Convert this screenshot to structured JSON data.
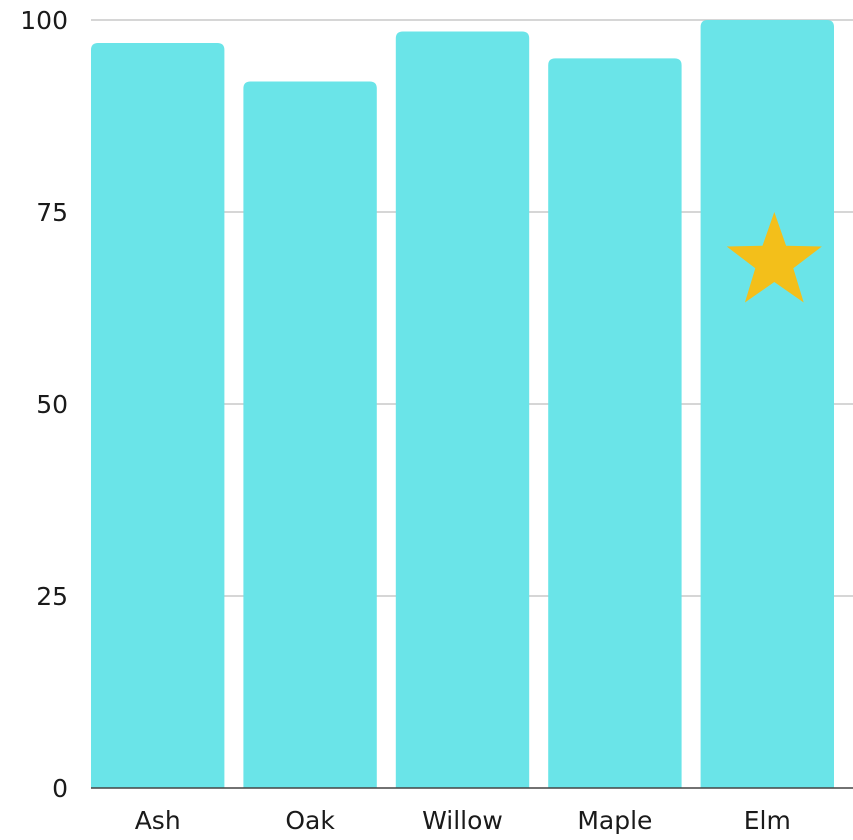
{
  "chart_data": {
    "type": "bar",
    "categories": [
      "Ash",
      "Oak",
      "Willow",
      "Maple",
      "Elm"
    ],
    "values": [
      97,
      92,
      98.5,
      95,
      100
    ],
    "ylim": [
      0,
      100
    ],
    "yticks": [
      "0",
      "25",
      "50",
      "75",
      "100"
    ],
    "grid": true,
    "highlight": {
      "category": "Elm",
      "marker": "star-icon"
    }
  },
  "colors": {
    "bar": "#6ae4e8",
    "grid": "#c8c8c8",
    "axis": "#444444",
    "star": "#f3bf1a",
    "text": "#1a1a1a"
  }
}
